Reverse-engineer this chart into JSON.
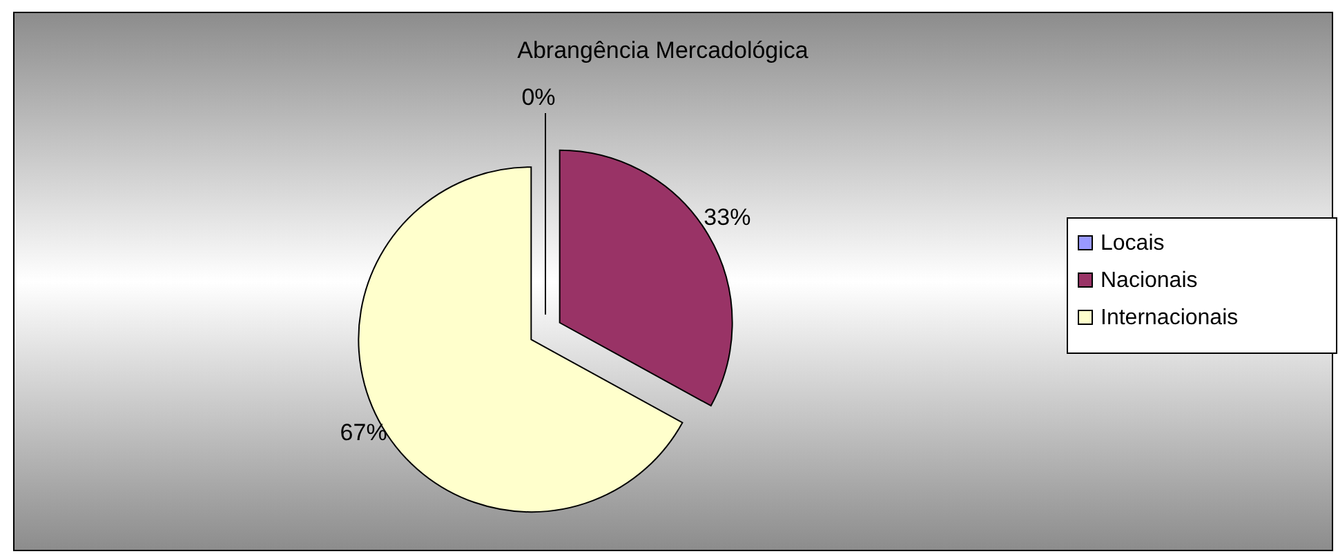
{
  "chart_data": {
    "type": "pie",
    "title": "Abrangência Mercadológica",
    "categories": [
      "Locais",
      "Nacionais",
      "Internacionais"
    ],
    "values": [
      0,
      33,
      67
    ],
    "colors": [
      "#9999ff",
      "#993366",
      "#ffffcc"
    ],
    "value_labels": [
      "0%",
      "33%",
      "67%"
    ],
    "legend": "right"
  }
}
